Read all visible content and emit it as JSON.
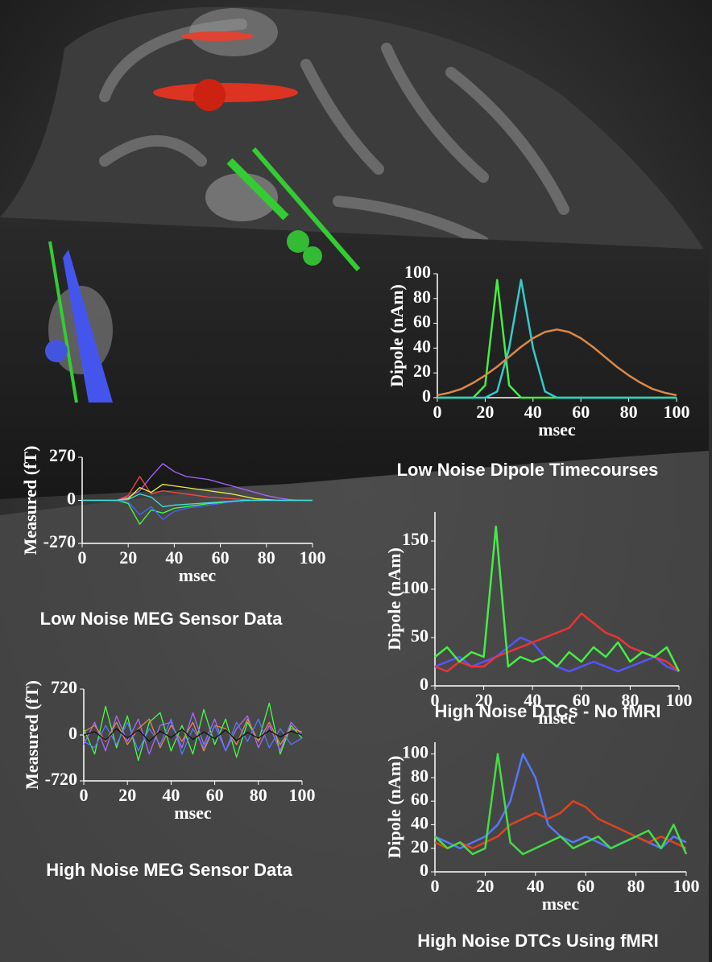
{
  "chart_data": [
    {
      "type": "line",
      "title": "Low Noise Dipole Timecourses",
      "x_label": "msec",
      "y_label": "Dipole (nAm)",
      "x": [
        0,
        5,
        10,
        15,
        20,
        25,
        30,
        35,
        40,
        45,
        50,
        55,
        60,
        65,
        70,
        75,
        80,
        85,
        90,
        95,
        100
      ],
      "xlim": [
        0,
        100
      ],
      "xticks": [
        0,
        20,
        40,
        60,
        80,
        100
      ],
      "ylim": [
        0,
        100
      ],
      "yticks": [
        0,
        20,
        40,
        60,
        80,
        100
      ],
      "series": [
        {
          "color": "#44ee44",
          "values": [
            0,
            0,
            0,
            0,
            10,
            95,
            10,
            0,
            0,
            0,
            0,
            0,
            0,
            0,
            0,
            0,
            0,
            0,
            0,
            0,
            0
          ]
        },
        {
          "color": "#33cccc",
          "values": [
            0,
            0,
            0,
            0,
            0,
            5,
            40,
            95,
            40,
            5,
            0,
            0,
            0,
            0,
            0,
            0,
            0,
            0,
            0,
            0,
            0
          ]
        },
        {
          "color": "#dd8844",
          "values": [
            2,
            4,
            7,
            12,
            18,
            25,
            33,
            41,
            48,
            53,
            55,
            53,
            48,
            41,
            33,
            25,
            18,
            12,
            7,
            4,
            2
          ]
        }
      ]
    },
    {
      "type": "line",
      "title": "Low Noise MEG Sensor Data",
      "x_label": "msec",
      "y_label": "Measured (fT)",
      "x": [
        0,
        5,
        10,
        15,
        20,
        25,
        30,
        35,
        40,
        45,
        50,
        55,
        60,
        65,
        70,
        75,
        80,
        85,
        90,
        95,
        100
      ],
      "xlim": [
        0,
        100
      ],
      "xticks": [
        0,
        20,
        40,
        60,
        80,
        100
      ],
      "ylim": [
        -270,
        270
      ],
      "yticks": [
        -270,
        0,
        270
      ],
      "series": [
        {
          "color": "#aa66ff",
          "values": [
            0,
            0,
            0,
            0,
            20,
            60,
            150,
            230,
            180,
            150,
            140,
            130,
            110,
            90,
            70,
            50,
            30,
            15,
            5,
            0,
            0
          ]
        },
        {
          "color": "#ff4444",
          "values": [
            0,
            0,
            0,
            0,
            30,
            150,
            40,
            60,
            50,
            40,
            30,
            20,
            15,
            10,
            5,
            0,
            0,
            0,
            0,
            0,
            0
          ]
        },
        {
          "color": "#44ff44",
          "values": [
            0,
            0,
            0,
            0,
            -20,
            -150,
            -60,
            -80,
            -50,
            -40,
            -30,
            -20,
            -15,
            -10,
            -5,
            0,
            0,
            0,
            0,
            0,
            0
          ]
        },
        {
          "color": "#eeee44",
          "values": [
            0,
            0,
            0,
            0,
            10,
            80,
            50,
            100,
            90,
            80,
            70,
            60,
            50,
            40,
            25,
            10,
            5,
            0,
            0,
            0,
            0
          ]
        },
        {
          "color": "#4466ff",
          "values": [
            0,
            0,
            0,
            0,
            -10,
            -90,
            -40,
            -120,
            -70,
            -50,
            -40,
            -30,
            -20,
            -10,
            -5,
            0,
            0,
            0,
            0,
            0,
            0
          ]
        },
        {
          "color": "#44dddd",
          "values": [
            0,
            0,
            0,
            0,
            5,
            40,
            20,
            -40,
            -30,
            -25,
            -20,
            -15,
            -10,
            -5,
            0,
            0,
            0,
            0,
            0,
            0,
            0
          ]
        }
      ]
    },
    {
      "type": "line",
      "title": "High Noise DTCs - No fMRI",
      "x_label": "msec",
      "y_label": "Dipole (nAm)",
      "x": [
        0,
        5,
        10,
        15,
        20,
        25,
        30,
        35,
        40,
        45,
        50,
        55,
        60,
        65,
        70,
        75,
        80,
        85,
        90,
        95,
        100
      ],
      "xlim": [
        0,
        100
      ],
      "xticks": [
        0,
        20,
        40,
        60,
        80,
        100
      ],
      "ylim": [
        0,
        180
      ],
      "yticks": [
        0,
        50,
        100,
        150
      ],
      "series": [
        {
          "color": "#5555ff",
          "values": [
            20,
            25,
            30,
            20,
            25,
            30,
            40,
            50,
            45,
            30,
            20,
            15,
            20,
            25,
            20,
            15,
            20,
            25,
            30,
            20,
            15
          ]
        },
        {
          "color": "#ee3333",
          "values": [
            20,
            15,
            25,
            20,
            20,
            30,
            35,
            40,
            45,
            50,
            55,
            60,
            75,
            65,
            55,
            50,
            40,
            35,
            30,
            25,
            15
          ]
        },
        {
          "color": "#44ee44",
          "values": [
            30,
            40,
            25,
            35,
            30,
            165,
            20,
            30,
            25,
            30,
            20,
            35,
            25,
            40,
            30,
            45,
            25,
            35,
            30,
            40,
            15
          ]
        }
      ]
    },
    {
      "type": "line",
      "title": "High Noise MEG Sensor Data",
      "x_label": "msec",
      "y_label": "Measured (fT)",
      "x": [
        0,
        5,
        10,
        15,
        20,
        25,
        30,
        35,
        40,
        45,
        50,
        55,
        60,
        65,
        70,
        75,
        80,
        85,
        90,
        95,
        100
      ],
      "xlim": [
        0,
        100
      ],
      "xticks": [
        0,
        20,
        40,
        60,
        80,
        100
      ],
      "ylim": [
        -720,
        720
      ],
      "yticks": [
        -720,
        0,
        720
      ],
      "series": [
        {
          "color": "#44ff44",
          "values": [
            100,
            -300,
            450,
            -200,
            300,
            -400,
            200,
            350,
            -250,
            150,
            -300,
            400,
            -150,
            250,
            -350,
            200,
            -100,
            500,
            -300,
            150,
            -50
          ]
        },
        {
          "color": "#aa66ff",
          "values": [
            -150,
            200,
            -250,
            300,
            -100,
            250,
            -300,
            150,
            200,
            -200,
            350,
            -150,
            250,
            -250,
            100,
            300,
            -200,
            150,
            -250,
            200,
            0
          ]
        },
        {
          "color": "#dd8855",
          "values": [
            50,
            150,
            -100,
            200,
            -150,
            100,
            250,
            -200,
            150,
            -100,
            200,
            -250,
            150,
            100,
            -150,
            250,
            -100,
            200,
            -150,
            100,
            50
          ]
        },
        {
          "color": "#5577ff",
          "values": [
            -100,
            -200,
            150,
            -150,
            200,
            -250,
            100,
            -150,
            250,
            -300,
            100,
            -200,
            150,
            -250,
            200,
            -100,
            250,
            -200,
            100,
            -150,
            -50
          ]
        },
        {
          "color": "#111111",
          "values": [
            0,
            50,
            -80,
            100,
            -50,
            80,
            -100,
            60,
            -40,
            90,
            -70,
            50,
            -60,
            80,
            -90,
            40,
            -50,
            70,
            -30,
            60,
            0
          ]
        }
      ]
    },
    {
      "type": "line",
      "title": "High Noise DTCs Using fMRI",
      "x_label": "msec",
      "y_label": "Dipole (nAm)",
      "x": [
        0,
        5,
        10,
        15,
        20,
        25,
        30,
        35,
        40,
        45,
        50,
        55,
        60,
        65,
        70,
        75,
        80,
        85,
        90,
        95,
        100
      ],
      "xlim": [
        0,
        100
      ],
      "xticks": [
        0,
        20,
        40,
        60,
        80,
        100
      ],
      "ylim": [
        0,
        110
      ],
      "yticks": [
        0,
        20,
        40,
        60,
        80,
        100
      ],
      "series": [
        {
          "color": "#5577ff",
          "values": [
            30,
            25,
            20,
            25,
            30,
            40,
            60,
            100,
            80,
            40,
            30,
            25,
            30,
            25,
            20,
            25,
            30,
            25,
            20,
            30,
            25
          ]
        },
        {
          "color": "#dd4422",
          "values": [
            25,
            20,
            25,
            20,
            25,
            30,
            40,
            45,
            50,
            45,
            50,
            60,
            55,
            45,
            40,
            35,
            30,
            25,
            30,
            25,
            20
          ]
        },
        {
          "color": "#44dd44",
          "values": [
            30,
            20,
            25,
            15,
            20,
            100,
            25,
            15,
            20,
            25,
            30,
            20,
            25,
            30,
            20,
            25,
            30,
            35,
            20,
            40,
            15
          ]
        }
      ]
    }
  ]
}
